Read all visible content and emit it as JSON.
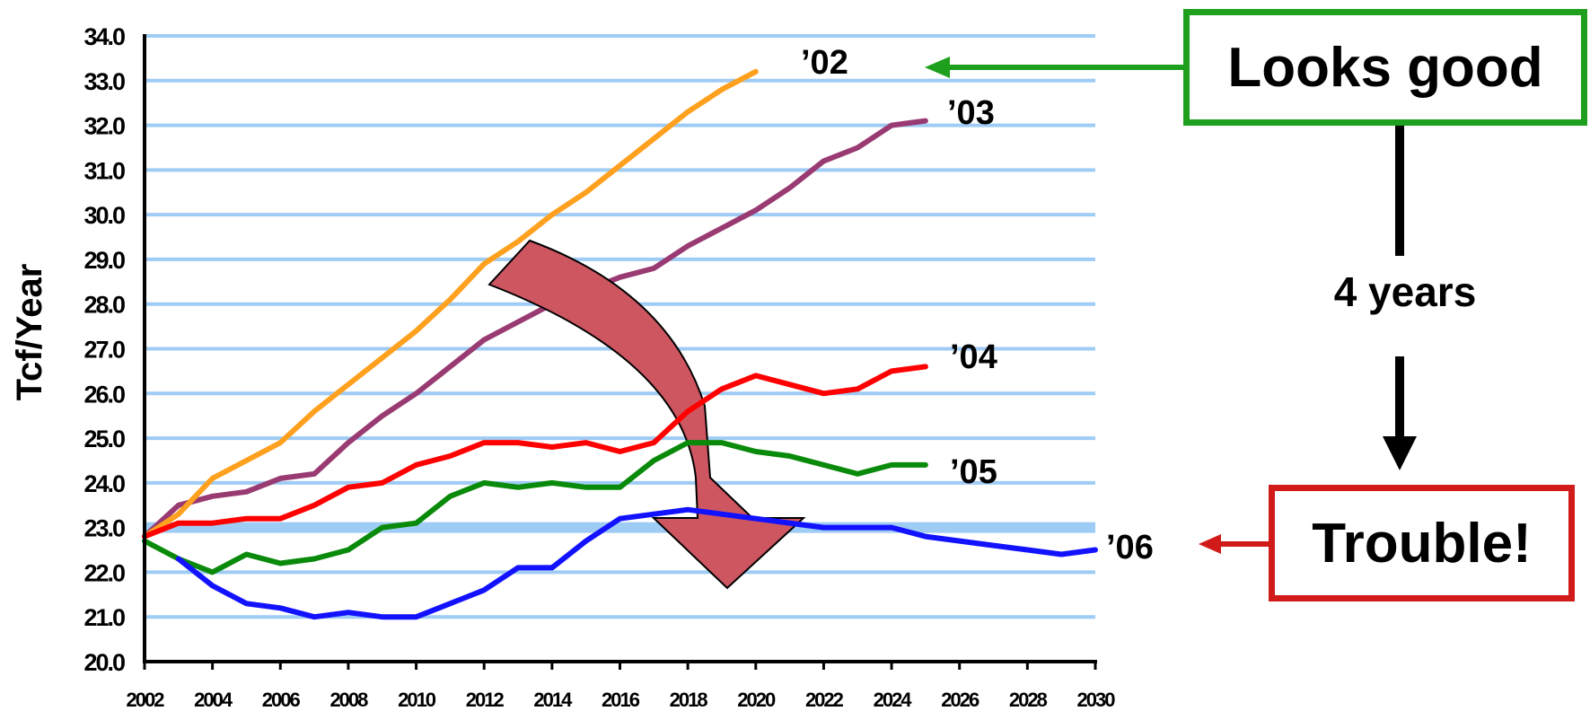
{
  "chart_data": {
    "type": "line",
    "ylabel": "Tcf/Year",
    "xlabel": "",
    "ylim": [
      20.0,
      34.0
    ],
    "xlim": [
      2002,
      2030
    ],
    "y_ticks": [
      "20.0",
      "21.0",
      "22.0",
      "23.0",
      "24.0",
      "25.0",
      "26.0",
      "27.0",
      "28.0",
      "29.0",
      "30.0",
      "31.0",
      "32.0",
      "33.0",
      "34.0"
    ],
    "x_ticks": [
      "2002",
      "2004",
      "2006",
      "2008",
      "2010",
      "2012",
      "2014",
      "2016",
      "2018",
      "2020",
      "2022",
      "2024",
      "2026",
      "2028",
      "2030"
    ],
    "grid": true,
    "highlight_line_y": 23.0,
    "series": [
      {
        "name": "’02",
        "color": "#ffa01e",
        "x": [
          2002,
          2003,
          2004,
          2005,
          2006,
          2007,
          2008,
          2009,
          2010,
          2011,
          2012,
          2013,
          2014,
          2015,
          2016,
          2017,
          2018,
          2019,
          2020
        ],
        "y": [
          22.8,
          23.3,
          24.1,
          24.5,
          24.9,
          25.6,
          26.2,
          26.8,
          27.4,
          28.1,
          28.9,
          29.4,
          30.0,
          30.5,
          31.1,
          31.7,
          32.3,
          32.8,
          33.2
        ]
      },
      {
        "name": "’03",
        "color": "#993b72",
        "x": [
          2002,
          2003,
          2004,
          2005,
          2006,
          2007,
          2008,
          2009,
          2010,
          2011,
          2012,
          2013,
          2014,
          2015,
          2016,
          2017,
          2018,
          2019,
          2020,
          2021,
          2022,
          2023,
          2024,
          2025
        ],
        "y": [
          22.8,
          23.5,
          23.7,
          23.8,
          24.1,
          24.2,
          24.9,
          25.5,
          26.0,
          26.6,
          27.2,
          27.6,
          28.0,
          28.3,
          28.6,
          28.8,
          29.3,
          29.7,
          30.1,
          30.6,
          31.2,
          31.5,
          32.0,
          32.1
        ],
        "pos": "behind"
      },
      {
        "name": "’04",
        "color": "#ff0000",
        "x": [
          2002,
          2003,
          2004,
          2005,
          2006,
          2007,
          2008,
          2009,
          2010,
          2011,
          2012,
          2013,
          2014,
          2015,
          2016,
          2017,
          2018,
          2019,
          2020,
          2021,
          2022,
          2023,
          2024,
          2025
        ],
        "y": [
          22.8,
          23.1,
          23.1,
          23.2,
          23.2,
          23.5,
          23.9,
          24.0,
          24.4,
          24.6,
          24.9,
          24.9,
          24.8,
          24.9,
          24.7,
          24.9,
          25.6,
          26.1,
          26.4,
          26.2,
          26.0,
          26.1,
          26.5,
          26.6
        ]
      },
      {
        "name": "’05",
        "color": "#0a8a0a",
        "x": [
          2002,
          2003,
          2004,
          2005,
          2006,
          2007,
          2008,
          2009,
          2010,
          2011,
          2012,
          2013,
          2014,
          2015,
          2016,
          2017,
          2018,
          2019,
          2020,
          2021,
          2022,
          2023,
          2024,
          2025
        ],
        "y": [
          22.7,
          22.3,
          22.0,
          22.4,
          22.2,
          22.3,
          22.5,
          23.0,
          23.1,
          23.7,
          24.0,
          23.9,
          24.0,
          23.9,
          23.9,
          24.5,
          24.9,
          24.9,
          24.7,
          24.6,
          24.4,
          24.2,
          24.4,
          24.4
        ]
      },
      {
        "name": "’06",
        "color": "#1212ff",
        "x": [
          2003,
          2004,
          2005,
          2006,
          2007,
          2008,
          2009,
          2010,
          2011,
          2012,
          2013,
          2014,
          2015,
          2016,
          2017,
          2018,
          2019,
          2020,
          2021,
          2022,
          2023,
          2024,
          2025,
          2026,
          2027,
          2028,
          2029,
          2030
        ],
        "y": [
          22.3,
          21.7,
          21.3,
          21.2,
          21.0,
          21.1,
          21.0,
          21.0,
          21.3,
          21.6,
          22.1,
          22.1,
          22.7,
          23.2,
          23.3,
          23.4,
          23.3,
          23.2,
          23.1,
          23.0,
          23.0,
          23.0,
          22.8,
          22.7,
          22.6,
          22.5,
          22.4,
          22.5
        ]
      }
    ]
  },
  "callouts": {
    "top_box": "Looks good",
    "bottom_box": "Trouble!",
    "middle": "4 years",
    "arrow_color_good": "#1ea01e",
    "arrow_color_trouble": "#d11a1a",
    "big_arrow_color": "#cd5661"
  }
}
